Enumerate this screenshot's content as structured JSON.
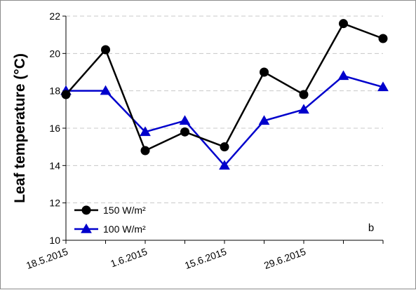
{
  "chart_data": {
    "type": "line",
    "ylabel": "Leaf temperature (°C)",
    "ylim": [
      10,
      22
    ],
    "yticks": [
      10,
      12,
      14,
      16,
      18,
      20,
      22
    ],
    "xticks": [
      "18.5.2015",
      "1.6.2015",
      "15.6.2015",
      "29.6.2015"
    ],
    "grid": "horizontal dashed",
    "legend_position": "bottom-left",
    "annotation": "b",
    "series": [
      {
        "name": "150 W/m²",
        "color": "#000000",
        "marker": "circle",
        "x": [
          "18.5.2015",
          "25.5.2015",
          "1.6.2015",
          "8.6.2015",
          "15.6.2015",
          "22.6.2015",
          "29.6.2015",
          "6.7.2015",
          "13.7.2015"
        ],
        "values": [
          17.8,
          20.2,
          14.8,
          15.8,
          15.0,
          19.0,
          17.8,
          21.6,
          20.8
        ]
      },
      {
        "name": "100 W/m²",
        "color": "#0000cc",
        "marker": "triangle",
        "x": [
          "18.5.2015",
          "25.5.2015",
          "1.6.2015",
          "8.6.2015",
          "15.6.2015",
          "22.6.2015",
          "29.6.2015",
          "6.7.2015",
          "13.7.2015"
        ],
        "values": [
          18.0,
          18.0,
          15.8,
          16.4,
          14.0,
          16.4,
          17.0,
          18.8,
          18.2
        ]
      }
    ]
  }
}
